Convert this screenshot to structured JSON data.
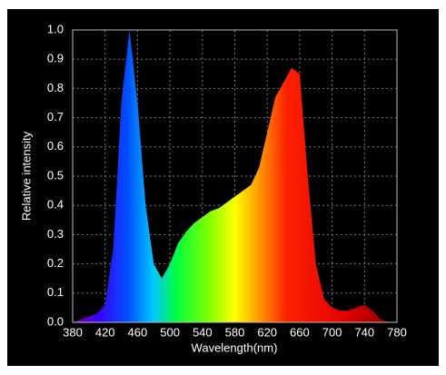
{
  "chart_data": {
    "type": "area",
    "x_label": "Wavelength(nm)",
    "y_label": "Relative intensity",
    "x": [
      380,
      390,
      400,
      410,
      420,
      430,
      440,
      450,
      460,
      470,
      480,
      490,
      500,
      510,
      520,
      530,
      540,
      550,
      560,
      570,
      580,
      590,
      600,
      610,
      620,
      630,
      640,
      650,
      660,
      670,
      680,
      690,
      700,
      710,
      720,
      730,
      740,
      750,
      760,
      770,
      780
    ],
    "values": [
      0.0,
      0.01,
      0.02,
      0.03,
      0.06,
      0.25,
      0.75,
      1.0,
      0.75,
      0.4,
      0.2,
      0.15,
      0.2,
      0.27,
      0.31,
      0.34,
      0.36,
      0.38,
      0.39,
      0.41,
      0.43,
      0.45,
      0.47,
      0.53,
      0.65,
      0.77,
      0.82,
      0.87,
      0.85,
      0.5,
      0.2,
      0.08,
      0.05,
      0.04,
      0.04,
      0.05,
      0.06,
      0.04,
      0.01,
      0.0,
      0.0
    ],
    "xlim": [
      380,
      780
    ],
    "xticks": [
      380,
      420,
      460,
      500,
      540,
      580,
      620,
      660,
      700,
      740,
      780
    ],
    "ylim": [
      0,
      1
    ],
    "yticks": [
      {
        "value": 0,
        "label": "0.0"
      },
      0.1,
      0.2,
      0.3,
      0.4,
      0.5,
      0.6,
      0.7,
      0.8,
      0.9,
      {
        "value": 1,
        "label": "1.0"
      }
    ],
    "grid": true
  }
}
